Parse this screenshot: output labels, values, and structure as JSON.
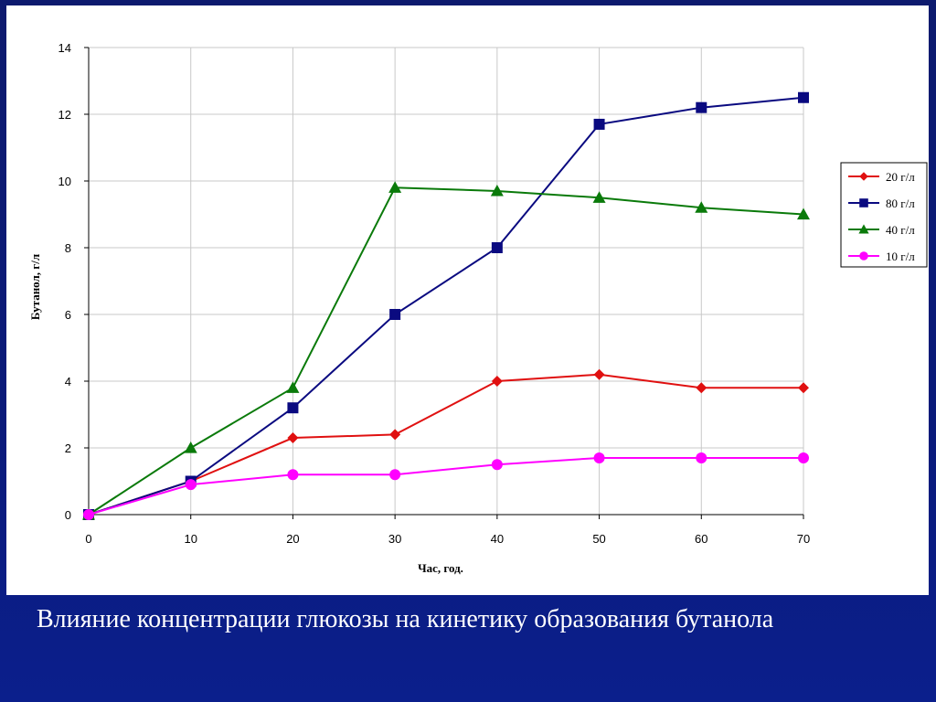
{
  "caption": "Влияние концентрации глюкозы  на кинетику образования бутанола",
  "chart_data": {
    "type": "line",
    "title": "",
    "xlabel": "Час, год.",
    "ylabel": "Бутанол, г/л",
    "xlim": [
      0,
      70
    ],
    "ylim": [
      0,
      14
    ],
    "xticks": [
      0,
      10,
      20,
      30,
      40,
      50,
      60,
      70
    ],
    "yticks": [
      0,
      2,
      4,
      6,
      8,
      10,
      12,
      14
    ],
    "grid": true,
    "legend_position": "right",
    "x": [
      0,
      10,
      20,
      30,
      40,
      50,
      60,
      70
    ],
    "series": [
      {
        "name": "20 г/л",
        "color": "#e01010",
        "marker": "diamond",
        "values": [
          0,
          1.0,
          2.3,
          2.4,
          4.0,
          4.2,
          3.8,
          3.8
        ]
      },
      {
        "name": "80 г/л",
        "color": "#0a0a80",
        "marker": "square",
        "values": [
          0,
          1.0,
          3.2,
          6.0,
          8.0,
          11.7,
          12.2,
          12.5
        ]
      },
      {
        "name": "40 г/л",
        "color": "#0a7a0a",
        "marker": "triangle",
        "values": [
          0,
          2.0,
          3.8,
          9.8,
          9.7,
          9.5,
          9.2,
          9.0
        ]
      },
      {
        "name": "10 г/л",
        "color": "#ff00ff",
        "marker": "circle",
        "values": [
          0,
          0.9,
          1.2,
          1.2,
          1.5,
          1.7,
          1.7,
          1.7
        ]
      }
    ]
  }
}
